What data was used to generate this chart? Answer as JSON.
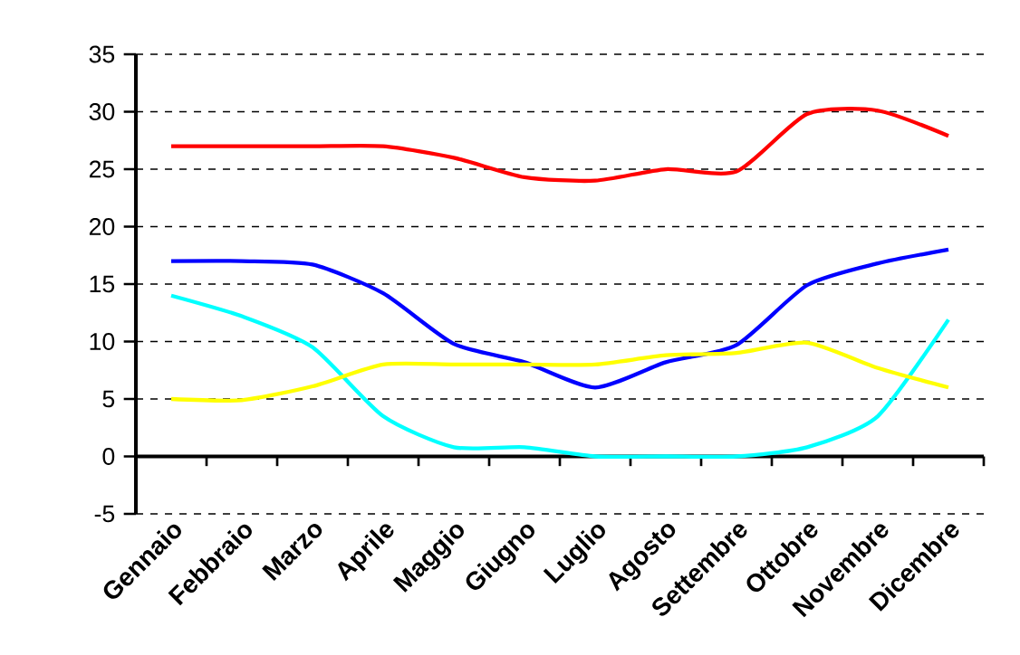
{
  "chart_data": {
    "type": "line",
    "categories": [
      "Gennaio",
      "Febbraio",
      "Marzo",
      "Aprile",
      "Maggio",
      "Giugno",
      "Luglio",
      "Agosto",
      "Settembre",
      "Ottobre",
      "Novembre",
      "Dicembre"
    ],
    "series": [
      {
        "color": "#ff0000",
        "values": [
          27,
          27,
          27,
          27,
          26,
          24.3,
          24,
          25,
          24.8,
          29.8,
          30.1,
          27.9
        ]
      },
      {
        "color": "#0000ff",
        "values": [
          17,
          17,
          16.7,
          14.2,
          9.8,
          8.2,
          6,
          8.2,
          9.7,
          14.9,
          16.8,
          18
        ]
      },
      {
        "color": "#00ffff",
        "values": [
          14,
          12.2,
          9.5,
          3.5,
          0.8,
          0.8,
          0,
          0,
          0,
          0.8,
          3.5,
          11.9
        ]
      },
      {
        "color": "#ffff00",
        "values": [
          5,
          4.9,
          6.1,
          8,
          8,
          8,
          8,
          8.8,
          9,
          9.9,
          7.7,
          6
        ]
      }
    ],
    "ylim": [
      -5,
      35
    ],
    "yticks": [
      -5,
      0,
      5,
      10,
      15,
      20,
      25,
      30,
      35
    ],
    "grid": "y",
    "legend": false,
    "marker": "none",
    "line_style": "solid"
  }
}
